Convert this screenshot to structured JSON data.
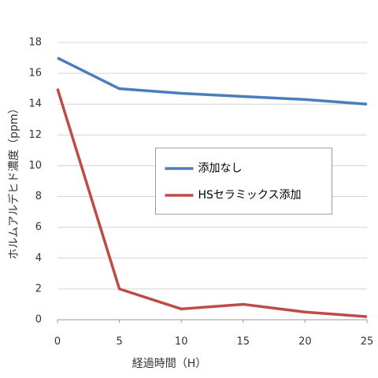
{
  "chart_data": {
    "type": "line",
    "ylabel": "ホルムアルデヒド濃度（ppm）",
    "xlabel": "経過時間（H）",
    "x": [
      0,
      5,
      10,
      15,
      20,
      25
    ],
    "series": [
      {
        "name": "添加なし",
        "color": "#4a7ebb",
        "values": [
          17,
          15,
          14.7,
          14.5,
          14.3,
          14
        ]
      },
      {
        "name": "HSセラミックス添加",
        "color": "#be4b48",
        "values": [
          15,
          2,
          0.7,
          1,
          0.5,
          0.2
        ]
      }
    ],
    "xlim": [
      0,
      25
    ],
    "xticks": [
      0,
      5,
      10,
      15,
      20,
      25
    ],
    "ylim": [
      0,
      18
    ],
    "yticks": [
      0,
      2,
      4,
      6,
      8,
      10,
      12,
      14,
      16,
      18
    ],
    "grid": true,
    "legend": "center"
  }
}
